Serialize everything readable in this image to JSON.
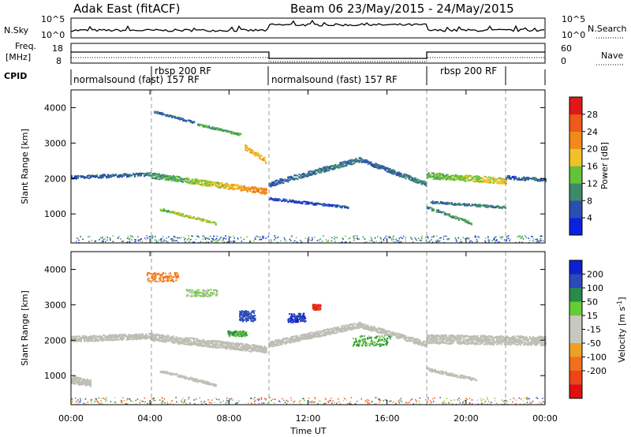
{
  "header": {
    "station": "Adak East (fitACF)",
    "beam_info": "Beam 06 23/May/2015 - 24/May/2015"
  },
  "strip_labels": {
    "nsky": "N.Sky",
    "nsky_ticks": [
      "10^5",
      "10^0"
    ],
    "nsearch": "N.Search",
    "nsearch_ticks": [
      "10^5",
      "10^0"
    ],
    "freq": "Freq.",
    "freq_unit": "[MHz]",
    "freq_ticks": [
      "18",
      "8"
    ],
    "nave": "Nave",
    "nave_ticks": [
      "60",
      "0"
    ],
    "cpid": "CPID"
  },
  "cpid_modes": [
    {
      "label": "normalsound (fast) 157 RF",
      "start_hour": 0
    },
    {
      "label": "rbsp 200 RF",
      "start_hour": 4.1
    },
    {
      "label": "normalsound (fast) 157 RF",
      "start_hour": 10
    },
    {
      "label": "rbsp 200 RF",
      "start_hour": 18
    }
  ],
  "colors": {
    "power_scale": [
      "#0a22e0",
      "#2a4fb0",
      "#3d8a6a",
      "#63c23a",
      "#f0c228",
      "#f08a1a",
      "#ee5a1a",
      "#e01818"
    ],
    "velocity_scale": [
      "#1020d0",
      "#2a4ab8",
      "#2a8a4a",
      "#66cc33",
      "#c8c8c0",
      "#c8c8c0",
      "#f0a020",
      "#f07020",
      "#ee4418",
      "#e01010"
    ],
    "ground_scatter": "#bebeb4"
  },
  "chart_data": [
    {
      "type": "heatmap",
      "quantity": "power",
      "xlabel": "",
      "ylabel": "Slant Range [km]",
      "x_ticks": [
        "00:00",
        "04:00",
        "08:00",
        "12:00",
        "16:00",
        "20:00",
        "00:00"
      ],
      "y_ticks": [
        "1000",
        "2000",
        "3000",
        "4000"
      ],
      "xlim_hours": [
        0,
        24
      ],
      "ylim_km": [
        180,
        4500
      ],
      "colorbar_label": "Power [dB]",
      "colorbar_ticks": [
        "4",
        "8",
        "12",
        "16",
        "20",
        "24",
        "28"
      ],
      "colorbar_range": [
        0,
        32
      ],
      "scatter_bands": [
        {
          "h0": 0.0,
          "h1": 4.1,
          "r0": 2050,
          "r1": 2140,
          "w": 90,
          "v0": 6,
          "v1": 9
        },
        {
          "h0": 4.1,
          "h1": 9.9,
          "r0": 2100,
          "r1": 1650,
          "w": 160,
          "v0": 10,
          "v1": 23
        },
        {
          "h0": 4.5,
          "h1": 7.3,
          "r0": 1150,
          "r1": 750,
          "w": 70,
          "v0": 14,
          "v1": 17
        },
        {
          "h0": 4.2,
          "h1": 6.2,
          "r0": 3900,
          "r1": 3600,
          "w": 60,
          "v0": 7,
          "v1": 8
        },
        {
          "h0": 6.4,
          "h1": 8.6,
          "r0": 3550,
          "r1": 3250,
          "w": 60,
          "v0": 12,
          "v1": 13
        },
        {
          "h0": 8.8,
          "h1": 9.9,
          "r0": 2900,
          "r1": 2500,
          "w": 140,
          "v0": 19,
          "v1": 20
        },
        {
          "h0": 10.0,
          "h1": 14.6,
          "r0": 1850,
          "r1": 2550,
          "w": 140,
          "v0": 7,
          "v1": 9
        },
        {
          "h0": 14.6,
          "h1": 18.0,
          "r0": 2550,
          "r1": 1850,
          "w": 130,
          "v0": 7,
          "v1": 9
        },
        {
          "h0": 10.0,
          "h1": 14.0,
          "r0": 1450,
          "r1": 1200,
          "w": 70,
          "v0": 5,
          "v1": 6
        },
        {
          "h0": 18.0,
          "h1": 22.0,
          "r0": 2100,
          "r1": 1950,
          "w": 170,
          "v0": 13,
          "v1": 18
        },
        {
          "h0": 18.2,
          "h1": 22.0,
          "r0": 1350,
          "r1": 1200,
          "w": 60,
          "v0": 8,
          "v1": 9
        },
        {
          "h0": 18.0,
          "h1": 20.3,
          "r0": 1200,
          "r1": 750,
          "w": 80,
          "v0": 9,
          "v1": 12
        },
        {
          "h0": 22.0,
          "h1": 24.0,
          "r0": 2050,
          "r1": 1980,
          "w": 100,
          "v0": 6,
          "v1": 8
        }
      ]
    },
    {
      "type": "heatmap",
      "quantity": "velocity",
      "xlabel": "Time UT",
      "ylabel": "Slant Range [km]",
      "x_ticks": [
        "00:00",
        "04:00",
        "08:00",
        "12:00",
        "16:00",
        "20:00",
        "00:00"
      ],
      "y_ticks": [
        "1000",
        "2000",
        "3000",
        "4000"
      ],
      "xlim_hours": [
        0,
        24
      ],
      "ylim_km": [
        180,
        4500
      ],
      "colorbar_label": "Velocity [m s^-1]",
      "colorbar_ticks": [
        "200",
        "100",
        "50",
        "15",
        "-15",
        "-50",
        "-100",
        "-200"
      ],
      "ground_scatter_bands": [
        {
          "h0": 0.0,
          "h1": 4.1,
          "r0": 2050,
          "r1": 2140,
          "w": 160
        },
        {
          "h0": 4.1,
          "h1": 9.9,
          "r0": 2100,
          "r1": 1750,
          "w": 200
        },
        {
          "h0": 4.5,
          "h1": 7.3,
          "r0": 1150,
          "r1": 750,
          "w": 80
        },
        {
          "h0": 0.0,
          "h1": 1.0,
          "r0": 900,
          "r1": 800,
          "w": 200
        },
        {
          "h0": 10.0,
          "h1": 14.6,
          "r0": 1900,
          "r1": 2450,
          "w": 170
        },
        {
          "h0": 14.6,
          "h1": 18.0,
          "r0": 2450,
          "r1": 1900,
          "w": 150
        },
        {
          "h0": 18.0,
          "h1": 24.0,
          "r0": 2050,
          "r1": 2000,
          "w": 250
        },
        {
          "h0": 18.0,
          "h1": 20.5,
          "r0": 1200,
          "r1": 900,
          "w": 90
        }
      ],
      "ionospheric_patches": [
        {
          "h": 8.9,
          "r": 2700,
          "dh": 0.8,
          "dr": 300,
          "v": 150
        },
        {
          "h": 11.4,
          "r": 2650,
          "dh": 0.9,
          "dr": 250,
          "v": 200
        },
        {
          "h": 12.4,
          "r": 2950,
          "dh": 0.4,
          "dr": 150,
          "v": -200
        },
        {
          "h": 4.6,
          "r": 3800,
          "dh": 1.6,
          "dr": 250,
          "v": -60
        },
        {
          "h": 6.6,
          "r": 3350,
          "dh": 1.6,
          "dr": 200,
          "v": 15
        },
        {
          "h": 8.4,
          "r": 2200,
          "dh": 1.0,
          "dr": 150,
          "v": 60
        },
        {
          "h": 15.2,
          "r": 2000,
          "dh": 2.0,
          "dr": 300,
          "v": 40
        }
      ]
    }
  ]
}
